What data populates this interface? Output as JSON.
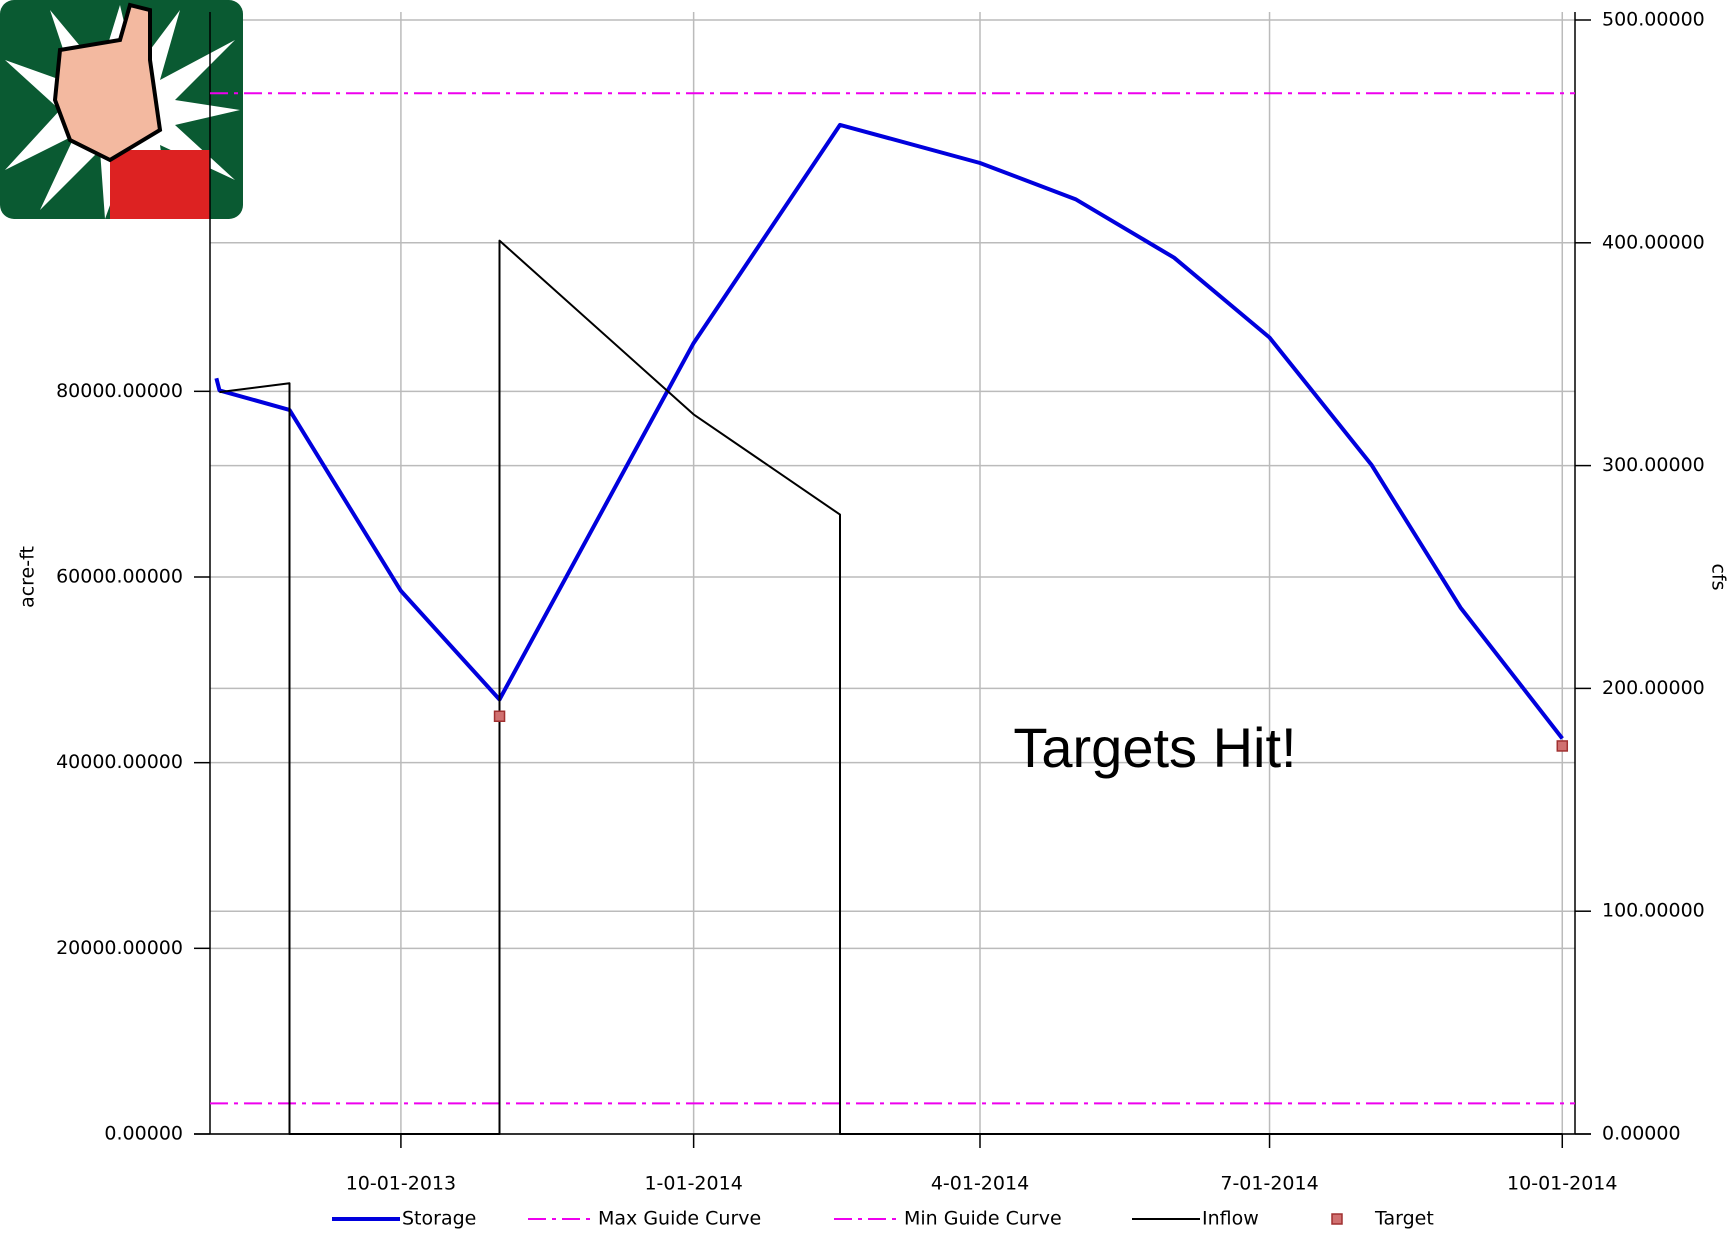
{
  "chart_data": {
    "type": "line",
    "annotation": "Targets Hit!",
    "ylabel": "acre-ft",
    "y2label": "cfs",
    "xlim": [
      "2013-08-02",
      "2014-10-05"
    ],
    "xticks": [
      {
        "value": "2013-10-01",
        "label": "10-01-2013"
      },
      {
        "value": "2014-01-01",
        "label": "1-01-2014"
      },
      {
        "value": "2014-04-01",
        "label": "4-01-2014"
      },
      {
        "value": "2014-07-01",
        "label": "7-01-2014"
      },
      {
        "value": "2014-10-01",
        "label": "10-01-2014"
      }
    ],
    "ylim": [
      0,
      120000
    ],
    "yticks": [
      {
        "value": 0,
        "label": "0.00000"
      },
      {
        "value": 20000,
        "label": "20000.00000"
      },
      {
        "value": 40000,
        "label": "40000.00000"
      },
      {
        "value": 60000,
        "label": "60000.00000"
      },
      {
        "value": 80000,
        "label": "80000.00000"
      }
    ],
    "y2lim": [
      0,
      500
    ],
    "y2ticks": [
      {
        "value": 0,
        "label": "0.00000"
      },
      {
        "value": 100,
        "label": "100.00000"
      },
      {
        "value": 200,
        "label": "200.00000"
      },
      {
        "value": 300,
        "label": "300.00000"
      },
      {
        "value": 400,
        "label": "400.00000"
      },
      {
        "value": 500,
        "label": "500.00000"
      }
    ],
    "grid": true,
    "legend": "bottom",
    "series": [
      {
        "name": "Storage",
        "color": "#0000dd",
        "style": "solid",
        "width": 4,
        "x": [
          "2013-08-04",
          "2013-08-05",
          "2013-08-27",
          "2013-10-01",
          "2013-11-01",
          "2014-01-01",
          "2014-02-16",
          "2014-04-01",
          "2014-05-01",
          "2014-06-01",
          "2014-07-01",
          "2014-08-02",
          "2014-08-30",
          "2014-10-01"
        ],
        "values": [
          81400,
          80100,
          78000,
          58500,
          46800,
          85200,
          108700,
          104600,
          100700,
          94400,
          85800,
          72100,
          56700,
          42600
        ]
      },
      {
        "name": "Max Guide Curve",
        "color": "#ee00ee",
        "style": "dashdot",
        "width": 2,
        "x": [
          "2013-08-02",
          "2014-10-05"
        ],
        "values": [
          112100,
          112100
        ]
      },
      {
        "name": "Min Guide Curve",
        "color": "#ee00ee",
        "style": "dashdot",
        "width": 2,
        "x": [
          "2013-08-02",
          "2014-10-05"
        ],
        "values": [
          3300,
          3300
        ]
      },
      {
        "name": "Inflow",
        "color": "#000000",
        "style": "solid",
        "width": 2,
        "axis": "y2",
        "x": [
          "2013-08-05",
          "2013-08-27",
          "2013-08-27",
          "2013-11-01",
          "2013-11-01",
          "2014-01-01",
          "2014-02-16",
          "2014-02-16",
          "2014-10-01"
        ],
        "values": [
          333,
          337,
          0,
          0,
          401,
          323,
          278,
          0,
          0
        ]
      },
      {
        "name": "Target",
        "color": "#d07070",
        "style": "markers",
        "x": [
          "2013-11-01",
          "2014-10-01"
        ],
        "values": [
          45000,
          41800
        ]
      }
    ]
  }
}
